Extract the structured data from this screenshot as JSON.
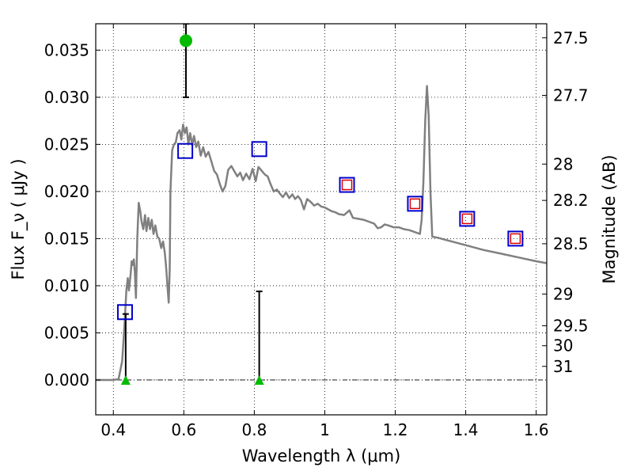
{
  "chart_data": {
    "type": "line",
    "xlabel": "Wavelength  λ (μm)",
    "ylabel": "Flux  F_ν  ( μJy )",
    "ylabel_right": "Magnitude (AB)",
    "xlim": [
      0.35,
      1.63
    ],
    "ylim": [
      -0.0037,
      0.0378
    ],
    "grid": true,
    "x_ticks": [
      "0.4",
      "0.6",
      "0.8",
      "1",
      "1.2",
      "1.4",
      "1.6"
    ],
    "y_ticks": [
      "0.000",
      "0.005",
      "0.010",
      "0.015",
      "0.020",
      "0.025",
      "0.030",
      "0.035"
    ],
    "mag_ticks": [
      "27.5",
      "27.7",
      "28",
      "28.2",
      "28.5",
      "29",
      "29.5",
      "30",
      "31"
    ],
    "colors": {
      "sed": "#808080",
      "observed": "#00bb00",
      "model_box": "#0000cc",
      "model_inner": "#dd0000",
      "errorbar": "#000000"
    },
    "series": [
      {
        "kind": "model_sed",
        "points": [
          [
            0.35,
            0.0
          ],
          [
            0.4,
            0.0
          ],
          [
            0.415,
            0.0001
          ],
          [
            0.425,
            0.002
          ],
          [
            0.432,
            0.006
          ],
          [
            0.437,
            0.0095
          ],
          [
            0.441,
            0.0108
          ],
          [
            0.444,
            0.0095
          ],
          [
            0.449,
            0.0112
          ],
          [
            0.452,
            0.0126
          ],
          [
            0.455,
            0.0122
          ],
          [
            0.458,
            0.0128
          ],
          [
            0.461,
            0.0115
          ],
          [
            0.464,
            0.0087
          ],
          [
            0.468,
            0.015
          ],
          [
            0.472,
            0.0188
          ],
          [
            0.476,
            0.018
          ],
          [
            0.48,
            0.0168
          ],
          [
            0.485,
            0.016
          ],
          [
            0.49,
            0.0175
          ],
          [
            0.494,
            0.0158
          ],
          [
            0.499,
            0.0172
          ],
          [
            0.504,
            0.016
          ],
          [
            0.509,
            0.017
          ],
          [
            0.514,
            0.0155
          ],
          [
            0.519,
            0.0164
          ],
          [
            0.525,
            0.0152
          ],
          [
            0.53,
            0.015
          ],
          [
            0.536,
            0.014
          ],
          [
            0.541,
            0.0147
          ],
          [
            0.546,
            0.0135
          ],
          [
            0.55,
            0.0118
          ],
          [
            0.554,
            0.0098
          ],
          [
            0.557,
            0.0082
          ],
          [
            0.56,
            0.0118
          ],
          [
            0.562,
            0.02
          ],
          [
            0.567,
            0.0244
          ],
          [
            0.572,
            0.025
          ],
          [
            0.577,
            0.0252
          ],
          [
            0.582,
            0.0262
          ],
          [
            0.588,
            0.0265
          ],
          [
            0.593,
            0.0255
          ],
          [
            0.598,
            0.0271
          ],
          [
            0.603,
            0.0262
          ],
          [
            0.608,
            0.0268
          ],
          [
            0.613,
            0.025
          ],
          [
            0.618,
            0.0262
          ],
          [
            0.624,
            0.0249
          ],
          [
            0.629,
            0.0259
          ],
          [
            0.635,
            0.0247
          ],
          [
            0.641,
            0.0253
          ],
          [
            0.648,
            0.0238
          ],
          [
            0.655,
            0.0247
          ],
          [
            0.662,
            0.0237
          ],
          [
            0.67,
            0.0242
          ],
          [
            0.678,
            0.0232
          ],
          [
            0.686,
            0.0222
          ],
          [
            0.694,
            0.0218
          ],
          [
            0.702,
            0.0208
          ],
          [
            0.71,
            0.02
          ],
          [
            0.718,
            0.0206
          ],
          [
            0.726,
            0.0223
          ],
          [
            0.735,
            0.0227
          ],
          [
            0.744,
            0.0221
          ],
          [
            0.752,
            0.0216
          ],
          [
            0.76,
            0.022
          ],
          [
            0.768,
            0.0212
          ],
          [
            0.777,
            0.0219
          ],
          [
            0.786,
            0.0213
          ],
          [
            0.795,
            0.0224
          ],
          [
            0.804,
            0.0211
          ],
          [
            0.812,
            0.0226
          ],
          [
            0.821,
            0.0222
          ],
          [
            0.83,
            0.0218
          ],
          [
            0.838,
            0.0216
          ],
          [
            0.846,
            0.0208
          ],
          [
            0.855,
            0.02
          ],
          [
            0.864,
            0.0202
          ],
          [
            0.872,
            0.0198
          ],
          [
            0.881,
            0.0194
          ],
          [
            0.89,
            0.0199
          ],
          [
            0.899,
            0.0193
          ],
          [
            0.908,
            0.0197
          ],
          [
            0.916,
            0.0192
          ],
          [
            0.924,
            0.0195
          ],
          [
            0.932,
            0.0191
          ],
          [
            0.941,
            0.0181
          ],
          [
            0.95,
            0.0192
          ],
          [
            0.96,
            0.0189
          ],
          [
            0.97,
            0.0185
          ],
          [
            0.98,
            0.0187
          ],
          [
            0.99,
            0.0184
          ],
          [
            1.0,
            0.0183
          ],
          [
            1.01,
            0.0181
          ],
          [
            1.02,
            0.0179
          ],
          [
            1.03,
            0.0178
          ],
          [
            1.04,
            0.0176
          ],
          [
            1.055,
            0.0175
          ],
          [
            1.07,
            0.018
          ],
          [
            1.08,
            0.0172
          ],
          [
            1.095,
            0.0171
          ],
          [
            1.11,
            0.017
          ],
          [
            1.125,
            0.0168
          ],
          [
            1.14,
            0.0166
          ],
          [
            1.15,
            0.0161
          ],
          [
            1.16,
            0.0162
          ],
          [
            1.17,
            0.0165
          ],
          [
            1.18,
            0.0164
          ],
          [
            1.195,
            0.0162
          ],
          [
            1.21,
            0.0162
          ],
          [
            1.225,
            0.016
          ],
          [
            1.24,
            0.0159
          ],
          [
            1.255,
            0.0157
          ],
          [
            1.27,
            0.0155
          ],
          [
            1.275,
            0.017
          ],
          [
            1.28,
            0.021
          ],
          [
            1.285,
            0.0275
          ],
          [
            1.29,
            0.0312
          ],
          [
            1.295,
            0.028
          ],
          [
            1.3,
            0.02
          ],
          [
            1.305,
            0.0152
          ],
          [
            1.32,
            0.0151
          ],
          [
            1.35,
            0.0148
          ],
          [
            1.4,
            0.0143
          ],
          [
            1.45,
            0.0138
          ],
          [
            1.5,
            0.0134
          ],
          [
            1.55,
            0.013
          ],
          [
            1.6,
            0.0126
          ],
          [
            1.63,
            0.0124
          ]
        ]
      },
      {
        "kind": "model_photometry",
        "points": [
          [
            0.433,
            0.0072
          ],
          [
            0.604,
            0.0243
          ],
          [
            0.814,
            0.0245
          ],
          [
            1.063,
            0.0207
          ],
          [
            1.256,
            0.0187
          ],
          [
            1.404,
            0.0171
          ],
          [
            1.541,
            0.015
          ]
        ],
        "inner_marker": [
          false,
          false,
          false,
          true,
          true,
          true,
          true
        ]
      },
      {
        "kind": "observed_detection",
        "points": [
          [
            0.606,
            0.036
          ]
        ],
        "error": [
          [
            0.03,
            0.0378
          ]
        ]
      },
      {
        "kind": "upper_limits",
        "points": [
          [
            0.435,
            0.0
          ],
          [
            0.814,
            0.0
          ]
        ],
        "error": [
          [
            0.0,
            0.007
          ],
          [
            0.0,
            0.0094
          ]
        ]
      }
    ]
  }
}
